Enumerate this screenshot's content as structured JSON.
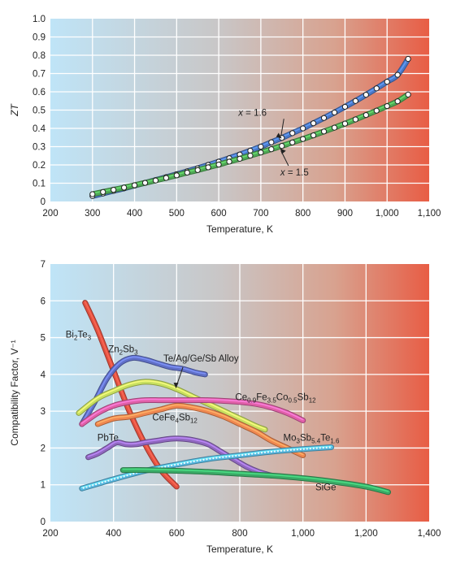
{
  "chart_data": [
    {
      "type": "line",
      "title": "",
      "xlabel": "Temperature, K",
      "ylabel": "ZT",
      "xlim": [
        200,
        1100
      ],
      "ylim": [
        0,
        1.0
      ],
      "xticks": [
        "200",
        "300",
        "400",
        "500",
        "600",
        "700",
        "800",
        "900",
        "1,000",
        "1,100"
      ],
      "yticks": [
        "0",
        "0.1",
        "0.2",
        "0.3",
        "0.4",
        "0.5",
        "0.6",
        "0.7",
        "0.8",
        "0.9",
        "1.0"
      ],
      "grid": true,
      "background": "gradient blue to red",
      "series": [
        {
          "name": "x = 1.6",
          "color": "#4a78c8",
          "x": [
            300,
            325,
            350,
            375,
            400,
            425,
            450,
            475,
            500,
            525,
            550,
            575,
            600,
            625,
            650,
            675,
            700,
            725,
            750,
            775,
            800,
            825,
            850,
            875,
            900,
            925,
            950,
            975,
            1000,
            1025,
            1050
          ],
          "y": [
            0.03,
            0.044,
            0.058,
            0.072,
            0.087,
            0.102,
            0.117,
            0.133,
            0.149,
            0.165,
            0.182,
            0.2,
            0.218,
            0.237,
            0.257,
            0.278,
            0.3,
            0.324,
            0.348,
            0.374,
            0.4,
            0.428,
            0.457,
            0.487,
            0.518,
            0.55,
            0.584,
            0.619,
            0.655,
            0.693,
            0.78
          ]
        },
        {
          "name": "x = 1.5",
          "color": "#4faa55",
          "x": [
            300,
            325,
            350,
            375,
            400,
            425,
            450,
            475,
            500,
            525,
            550,
            575,
            600,
            625,
            650,
            675,
            700,
            725,
            750,
            775,
            800,
            825,
            850,
            875,
            900,
            925,
            950,
            975,
            1000,
            1025,
            1050
          ],
          "y": [
            0.04,
            0.052,
            0.064,
            0.076,
            0.089,
            0.102,
            0.115,
            0.129,
            0.143,
            0.158,
            0.172,
            0.187,
            0.202,
            0.218,
            0.234,
            0.251,
            0.268,
            0.286,
            0.304,
            0.323,
            0.342,
            0.362,
            0.383,
            0.404,
            0.426,
            0.449,
            0.473,
            0.497,
            0.522,
            0.548,
            0.585
          ]
        }
      ],
      "annotations": [
        {
          "label": "x = 1.6",
          "x": 720,
          "y": 0.47
        },
        {
          "label": "x = 1.5",
          "x": 785,
          "y": 0.16
        }
      ]
    },
    {
      "type": "line",
      "title": "",
      "xlabel": "Temperature, K",
      "ylabel": "Compatibility Factor, V⁻¹",
      "xlim": [
        200,
        1400
      ],
      "ylim": [
        0,
        7
      ],
      "xticks": [
        "200",
        "400",
        "600",
        "800",
        "1,000",
        "1,200",
        "1,400"
      ],
      "yticks": [
        "0",
        "1",
        "2",
        "3",
        "4",
        "5",
        "6",
        "7"
      ],
      "grid": true,
      "background": "gradient blue to red",
      "series": [
        {
          "name": "Bi₂Te₃",
          "color": "#e05040",
          "x": [
            310,
            350,
            400,
            450,
            500,
            550,
            600
          ],
          "y": [
            5.95,
            5.2,
            4.1,
            3.0,
            2.1,
            1.4,
            0.95
          ]
        },
        {
          "name": "Zn₂Sb₃",
          "color": "#6070c8",
          "x": [
            300,
            340,
            380,
            420,
            460,
            500,
            540,
            580,
            620,
            660,
            690
          ],
          "y": [
            2.65,
            3.25,
            3.9,
            4.3,
            4.45,
            4.4,
            4.3,
            4.2,
            4.15,
            4.05,
            4.0
          ]
        },
        {
          "name": "Te/Ag/Ge/Sb Alloy",
          "color": "#c8e060",
          "x": [
            290,
            350,
            400,
            450,
            500,
            550,
            600,
            650,
            700,
            750,
            800,
            850,
            880
          ],
          "y": [
            2.95,
            3.35,
            3.55,
            3.72,
            3.8,
            3.75,
            3.6,
            3.4,
            3.2,
            3.0,
            2.8,
            2.6,
            2.5
          ]
        },
        {
          "name": "Ce₀.₉Fe₃.₅Co₀.₅Sb₁₂",
          "color": "#e060a8",
          "x": [
            300,
            350,
            400,
            450,
            500,
            550,
            600,
            650,
            700,
            750,
            800,
            850,
            900,
            950,
            1000
          ],
          "y": [
            2.65,
            2.95,
            3.15,
            3.25,
            3.3,
            3.3,
            3.3,
            3.3,
            3.3,
            3.28,
            3.25,
            3.2,
            3.1,
            2.95,
            2.75
          ]
        },
        {
          "name": "CeFe₄Sb₁₂",
          "color": "#f08850",
          "x": [
            350,
            400,
            450,
            500,
            550,
            600,
            650,
            700,
            750,
            800,
            850,
            900,
            950,
            1000
          ],
          "y": [
            2.65,
            2.8,
            2.85,
            2.95,
            3.05,
            3.15,
            3.1,
            3.0,
            2.85,
            2.65,
            2.45,
            2.2,
            2.0,
            1.8
          ]
        },
        {
          "name": "PbTe",
          "color": "#9068c0",
          "x": [
            320,
            350,
            380,
            410,
            440,
            470,
            500,
            540,
            580,
            620,
            660,
            700,
            740,
            780,
            820,
            860,
            900
          ],
          "y": [
            1.75,
            1.85,
            2.0,
            2.15,
            2.1,
            2.1,
            2.15,
            2.2,
            2.25,
            2.25,
            2.2,
            2.1,
            1.9,
            1.7,
            1.5,
            1.35,
            1.25
          ]
        },
        {
          "name": "Mo₃Sb₅.₄Te₁.₆",
          "color": "#58b8e0",
          "x": [
            300,
            400,
            500,
            600,
            700,
            800,
            900,
            1000,
            1090
          ],
          "y": [
            0.9,
            1.15,
            1.38,
            1.55,
            1.7,
            1.8,
            1.9,
            1.97,
            2.02
          ]
        },
        {
          "name": "SiGe",
          "color": "#3aaa66",
          "x": [
            430,
            500,
            600,
            700,
            800,
            900,
            1000,
            1100,
            1200,
            1270
          ],
          "y": [
            1.4,
            1.4,
            1.38,
            1.35,
            1.3,
            1.25,
            1.18,
            1.08,
            0.95,
            0.8
          ]
        }
      ],
      "labels": [
        {
          "text": "Bi₂Te₃",
          "x": 305,
          "y": 5.0
        },
        {
          "text": "Zn₂Sb₃",
          "x": 440,
          "y": 4.6
        },
        {
          "text": "Te/Ag/Ge/Sb Alloy",
          "x": 630,
          "y": 4.35
        },
        {
          "text": "Ce₀.₉Fe₃.₅Co₀.₅Sb₁₂",
          "x": 935,
          "y": 3.3
        },
        {
          "text": "CeFe₄Sb₁₂",
          "x": 600,
          "y": 2.75
        },
        {
          "text": "PbTe",
          "x": 395,
          "y": 2.2
        },
        {
          "text": "Mo₃Sb₅.₄Te₁.₆",
          "x": 1010,
          "y": 2.2
        },
        {
          "text": "SiGe",
          "x": 1060,
          "y": 0.85
        }
      ]
    }
  ]
}
